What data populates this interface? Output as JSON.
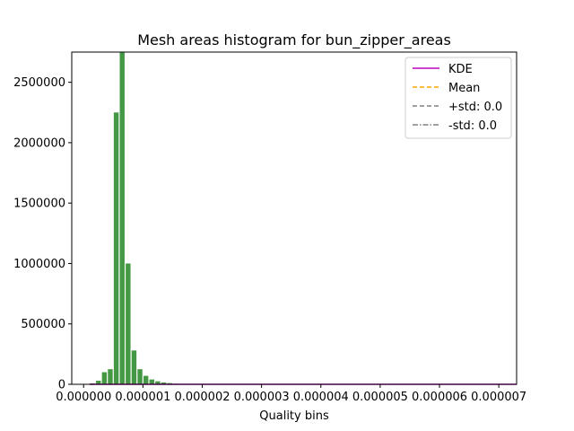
{
  "chart_data": {
    "type": "bar",
    "title": "Mesh areas histogram for bun_zipper_areas",
    "xlabel": "Quality bins",
    "ylabel": "",
    "xlim": [
      -2e-07,
      7.3e-06
    ],
    "ylim": [
      0,
      2750000
    ],
    "x_ticks": [
      0.0,
      1e-06,
      2e-06,
      3e-06,
      4e-06,
      5e-06,
      6e-06,
      7e-06
    ],
    "x_tick_labels": [
      "0.000000",
      "0.000001",
      "0.000002",
      "0.000003",
      "0.000004",
      "0.000005",
      "0.000006",
      "0.000007"
    ],
    "y_ticks": [
      0,
      500000,
      1000000,
      1500000,
      2000000,
      2500000
    ],
    "y_tick_labels": [
      "0",
      "500000",
      "1000000",
      "1500000",
      "2000000",
      "2500000"
    ],
    "bin_width": 1e-07,
    "bin_starts": [
      1e-07,
      2e-07,
      3e-07,
      4e-07,
      5e-07,
      6e-07,
      7e-07,
      8e-07,
      9e-07,
      1e-06,
      1.1e-06,
      1.2e-06,
      1.3e-06,
      1.4e-06,
      1.5e-06
    ],
    "values": [
      8000,
      30000,
      100000,
      125000,
      2250000,
      2750000,
      1000000,
      280000,
      125000,
      70000,
      40000,
      25000,
      15000,
      10000,
      5000
    ],
    "bar_color": "#3a923a",
    "kde": {
      "x": [
        1e-07,
        7.3e-06
      ],
      "y": [
        0,
        0
      ],
      "color": "#bf00bf"
    },
    "legend": {
      "position": "top-right",
      "items": [
        {
          "label": "KDE",
          "style": "solid",
          "color": "#bf00bf"
        },
        {
          "label": "Mean",
          "style": "dashed",
          "color": "#ffa500"
        },
        {
          "label": "+std: 0.0",
          "style": "dashed",
          "color": "#808080"
        },
        {
          "label": "-std: 0.0",
          "style": "dashdot",
          "color": "#808080"
        }
      ]
    }
  }
}
